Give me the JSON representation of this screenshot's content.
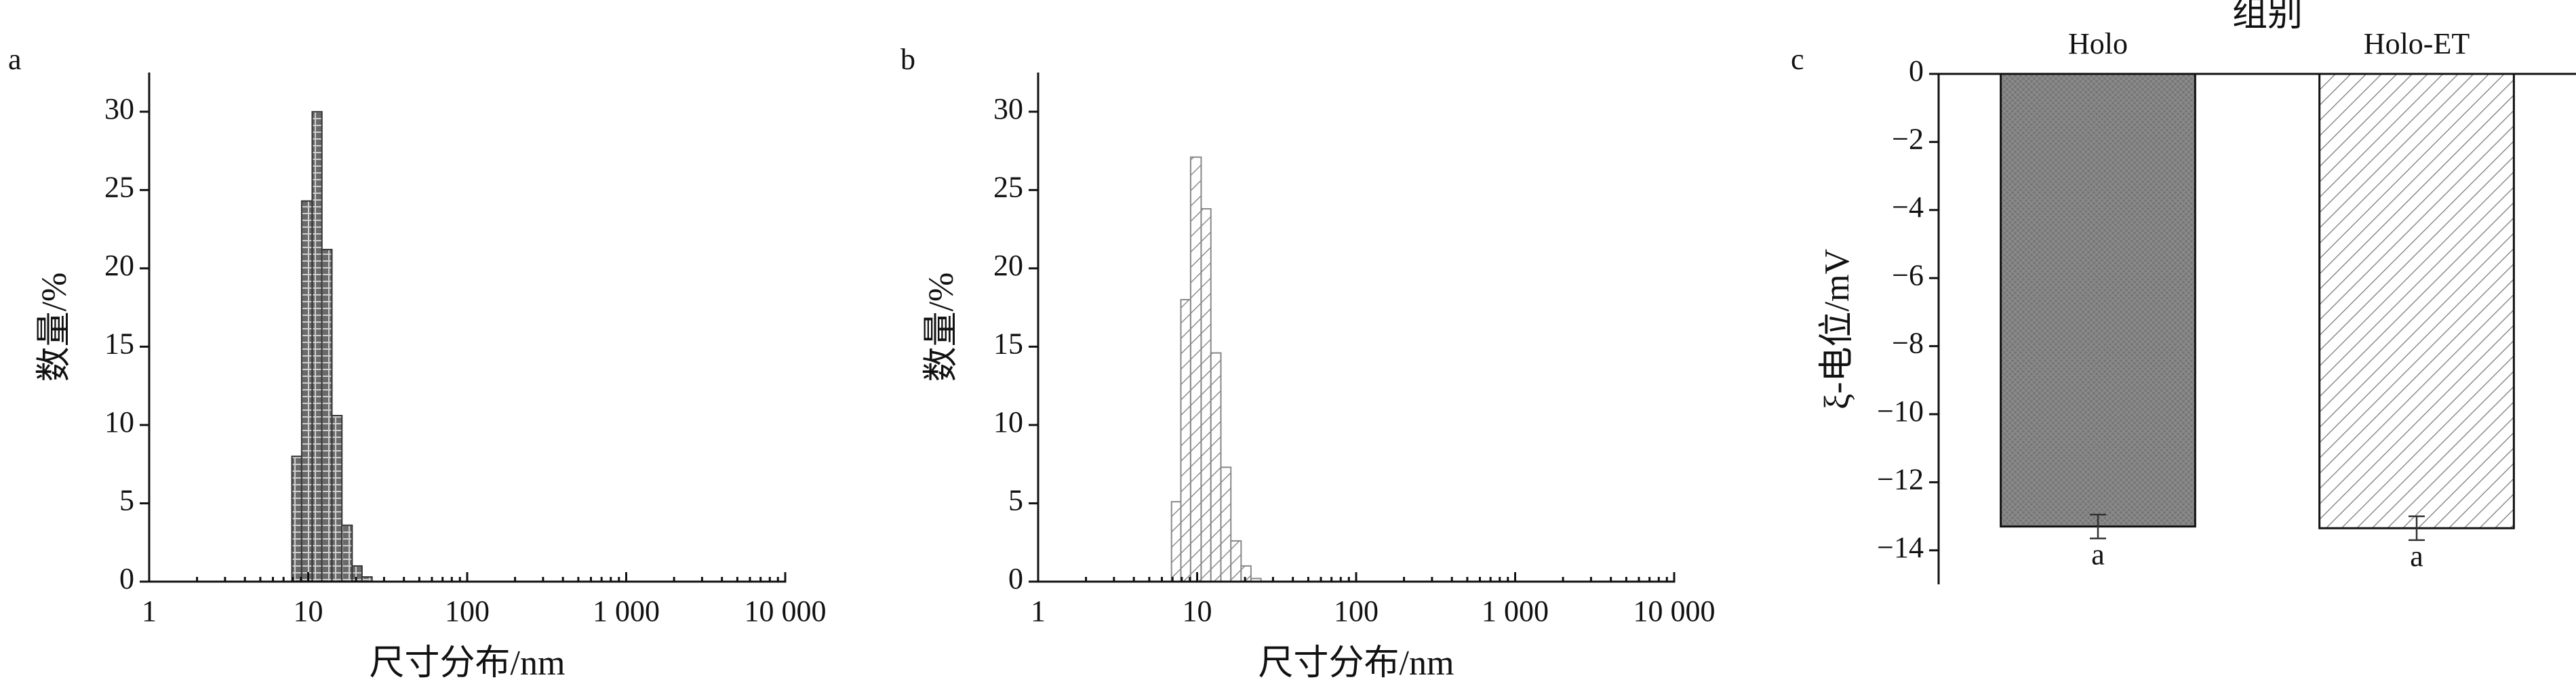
{
  "chart_data": [
    {
      "type": "histogram",
      "panel_label": "a",
      "xlabel": "尺寸分布/nm",
      "ylabel": "数量/%",
      "bins": [
        7.9,
        9.1,
        10.6,
        12.2,
        14.1,
        16.3,
        18.9,
        21.8,
        25.2
      ],
      "values": [
        8,
        24.3,
        30,
        21.2,
        10.6,
        3.6,
        1.0,
        0.3
      ],
      "color": "#333333",
      "pattern": "crosshatch",
      "log_x": true,
      "xlim": [
        1,
        10000
      ],
      "xticks": [
        1,
        10,
        100,
        {
          "value": 1000,
          "label": "1 000"
        },
        {
          "value": 10000,
          "label": "10 000"
        }
      ],
      "ylim": [
        0,
        32.5
      ],
      "yticks": [
        0,
        5,
        10,
        15,
        20,
        25,
        30
      ]
    },
    {
      "type": "histogram",
      "panel_label": "b",
      "xlabel": "尺寸分布/nm",
      "ylabel": "数量/%",
      "bins": [
        6.9,
        7.9,
        9.1,
        10.6,
        12.2,
        14.1,
        16.3,
        18.9,
        21.8,
        25.2
      ],
      "values": [
        5.1,
        18,
        27.1,
        23.8,
        14.6,
        7.3,
        2.6,
        1.0,
        0.2
      ],
      "color": "#888888",
      "pattern": "hatch-light",
      "log_x": true,
      "xlim": [
        1,
        10000
      ],
      "xticks": [
        1,
        10,
        100,
        {
          "value": 1000,
          "label": "1 000"
        },
        {
          "value": 10000,
          "label": "10 000"
        }
      ],
      "ylim": [
        0,
        32.5
      ],
      "yticks": [
        0,
        5,
        10,
        15,
        20,
        25,
        30
      ]
    },
    {
      "type": "bar",
      "panel_label": "c",
      "xlabel": "组别",
      "ylabel": "ξ-电位/mV",
      "categories": [
        "Holo",
        "Holo-ET"
      ],
      "values": [
        -13.3,
        -13.35
      ],
      "errors": [
        0.35,
        0.35
      ],
      "annotations": [
        "a",
        "a"
      ],
      "colors": [
        "#333333",
        "#555555"
      ],
      "patterns": [
        "dark-texture",
        "hatch-light"
      ],
      "x_axis_position": "top",
      "ylim": [
        -15,
        0
      ],
      "yticks": [
        0,
        {
          "value": -2,
          "label": "−2"
        },
        {
          "value": -4,
          "label": "−4"
        },
        {
          "value": -6,
          "label": "−6"
        },
        {
          "value": -8,
          "label": "−8"
        },
        {
          "value": -10,
          "label": "−10"
        },
        {
          "value": -12,
          "label": "−12"
        },
        {
          "value": -14,
          "label": "−14"
        }
      ]
    }
  ]
}
